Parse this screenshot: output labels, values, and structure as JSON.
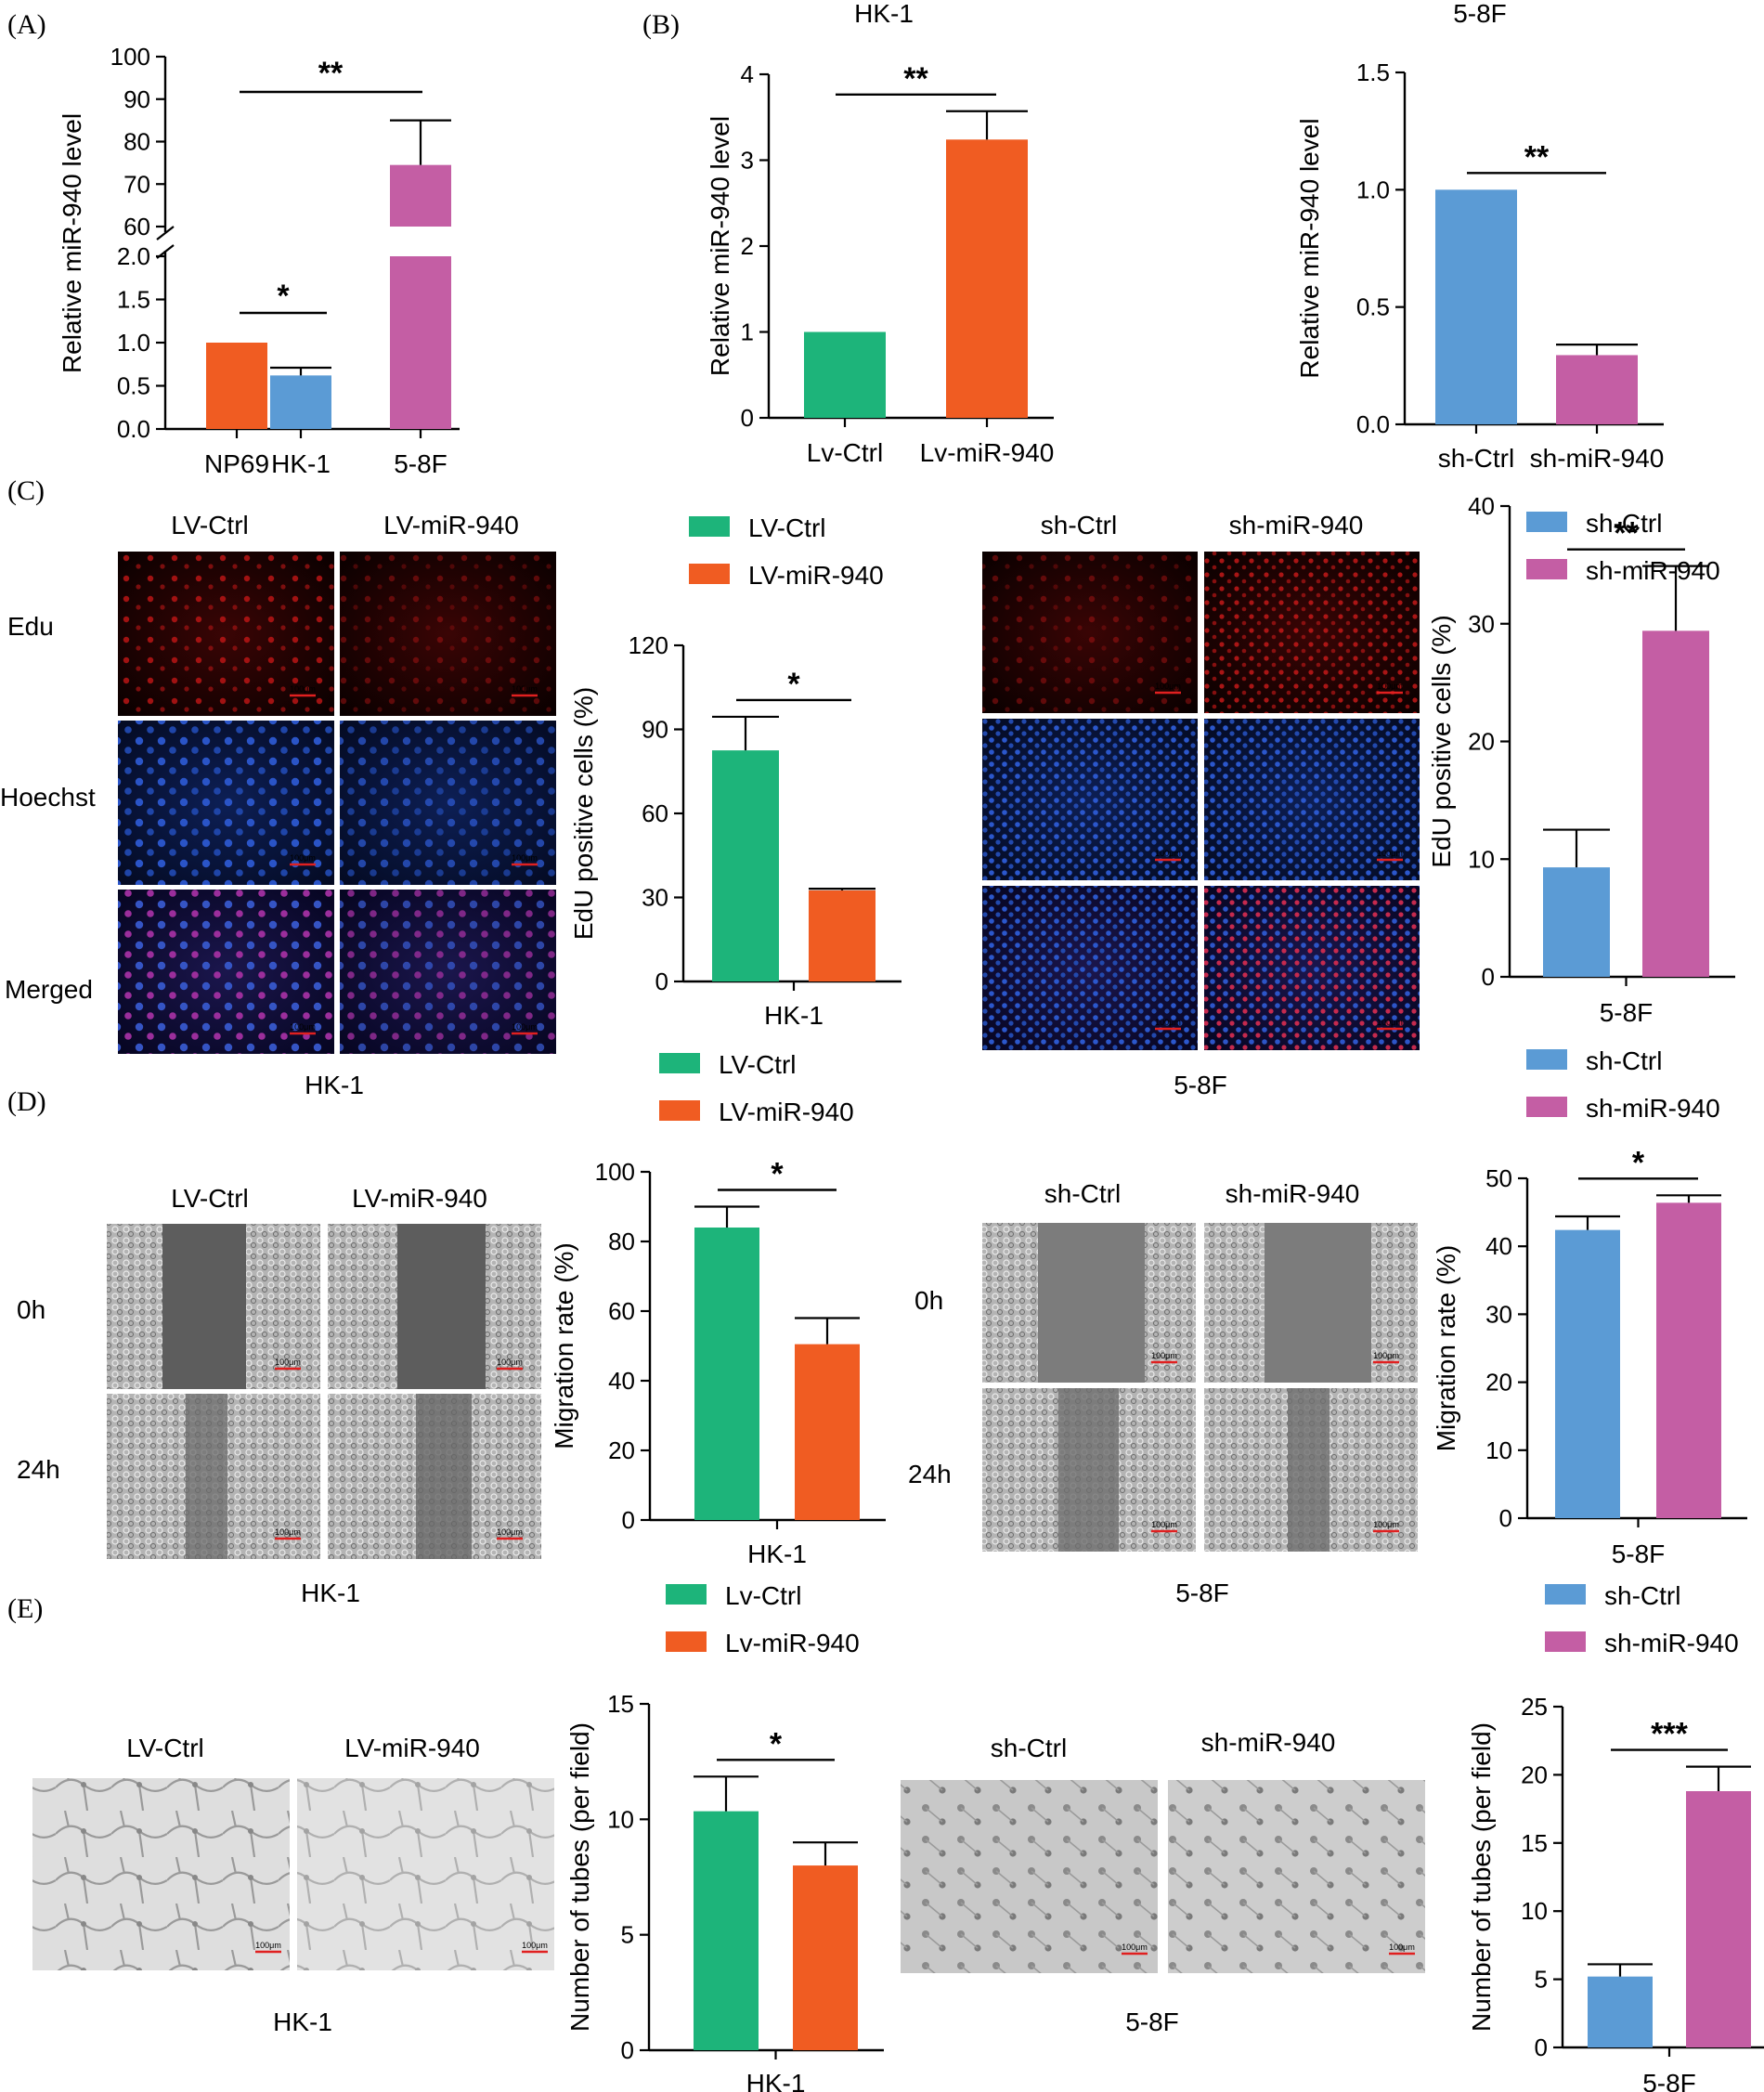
{
  "colors": {
    "green": "#1db47a",
    "orange": "#f05c22",
    "blue": "#5b9bd5",
    "magenta": "#c45ea4",
    "axis": "#000000",
    "edu_red": "#7a0c0c",
    "hoechst_blue": "#132d78",
    "merged": "#3a1a66",
    "scratch_bg": "#a9a9a9",
    "scratch_gap": "#5d5d5d",
    "tube_bg": "#dcdcdc",
    "tube_bg2": "#c7c7c7",
    "scale_red": "#e02020"
  },
  "panels": {
    "a": "(A)",
    "b": "(B)",
    "c": "(C)",
    "d": "(D)",
    "e": "(E)"
  },
  "micro": {
    "scale": "100μm",
    "c": {
      "col_left": [
        "LV-Ctrl",
        "LV-miR-940"
      ],
      "col_right": [
        "sh-Ctrl",
        "sh-miR-940"
      ],
      "rows": [
        "Edu",
        "Hoechst",
        "Merged"
      ],
      "cap_left": "HK-1",
      "cap_right": "5-8F"
    },
    "d": {
      "col_left": [
        "LV-Ctrl",
        "LV-miR-940"
      ],
      "col_right": [
        "sh-Ctrl",
        "sh-miR-940"
      ],
      "rows_left": [
        "0h",
        "24h"
      ],
      "rows_right": [
        "0h",
        "24h"
      ],
      "cap_left": "HK-1",
      "cap_right": "5-8F"
    },
    "e": {
      "col_left": [
        "LV-Ctrl",
        "LV-miR-940"
      ],
      "col_right": [
        "sh-Ctrl",
        "sh-miR-940"
      ],
      "cap_left": "HK-1",
      "cap_right": "5-8F"
    }
  },
  "legends": {
    "c_mid": [
      "LV-Ctrl",
      "LV-miR-940"
    ],
    "c_right": [
      "sh-Ctrl",
      "sh-miR-940"
    ],
    "d_mid": [
      "LV-Ctrl",
      "LV-miR-940"
    ],
    "d_right": [
      "sh-Ctrl",
      "sh-miR-940"
    ],
    "e_mid": [
      "Lv-Ctrl",
      "Lv-miR-940"
    ],
    "e_right": [
      "sh-Ctrl",
      "sh-miR-940"
    ]
  },
  "chart_data": [
    {
      "id": "A",
      "type": "bar",
      "broken_axis": true,
      "title": "",
      "categories": [
        "NP69",
        "HK-1",
        "5-8F"
      ],
      "values": [
        1.0,
        0.62,
        74.5
      ],
      "errors": [
        0,
        0.09,
        10.5
      ],
      "colors": [
        "#f05c22",
        "#5b9bd5",
        "#c45ea4"
      ],
      "ylabel": "Relative miR-940 level",
      "lower_range": [
        0,
        2
      ],
      "lower_ticks": [
        "0.0",
        "0.5",
        "1.0",
        "1.5",
        "2.0"
      ],
      "lower_tick_values": [
        0,
        0.5,
        1.0,
        1.5,
        2.0
      ],
      "upper_range": [
        60,
        100
      ],
      "upper_ticks": [
        "60",
        "70",
        "80",
        "90",
        "100"
      ],
      "upper_tick_values": [
        60,
        70,
        80,
        90,
        100
      ],
      "significance": [
        {
          "from": 0,
          "to": 1,
          "label": "*"
        },
        {
          "from": 0,
          "to": 2,
          "label": "**"
        }
      ]
    },
    {
      "id": "B1",
      "type": "bar",
      "title": "HK-1",
      "categories": [
        "Lv-Ctrl",
        "Lv-miR-940"
      ],
      "values": [
        1.0,
        3.24
      ],
      "errors": [
        0,
        0.33
      ],
      "colors": [
        "#1db47a",
        "#f05c22"
      ],
      "ylabel": "Relative miR-940 level",
      "xlabel": "",
      "ylim": [
        0,
        4
      ],
      "yticks": [
        "0",
        "1",
        "2",
        "3",
        "4"
      ],
      "ytick_values": [
        0,
        1,
        2,
        3,
        4
      ],
      "significance": [
        {
          "from": 0,
          "to": 1,
          "label": "**"
        }
      ]
    },
    {
      "id": "B2",
      "type": "bar",
      "title": "5-8F",
      "categories": [
        "sh-Ctrl",
        "sh-miR-940"
      ],
      "values": [
        1.0,
        0.295
      ],
      "errors": [
        0,
        0.045
      ],
      "colors": [
        "#5b9bd5",
        "#c45ea4"
      ],
      "ylabel": "Relative miR-940 level",
      "xlabel": "",
      "ylim": [
        0,
        1.5
      ],
      "yticks": [
        "0.0",
        "0.5",
        "1.0",
        "1.5"
      ],
      "ytick_values": [
        0,
        0.5,
        1.0,
        1.5
      ],
      "significance": [
        {
          "from": 0,
          "to": 1,
          "label": "**"
        }
      ]
    },
    {
      "id": "C1",
      "type": "bar",
      "title": "",
      "categories": [
        "LV-Ctrl",
        "LV-miR-940"
      ],
      "values": [
        82.5,
        32.5
      ],
      "errors": [
        12,
        0.6
      ],
      "colors": [
        "#1db47a",
        "#f05c22"
      ],
      "ylabel": "EdU positive cells (%)",
      "xlabel": "HK-1",
      "ylim": [
        0,
        120
      ],
      "yticks": [
        "0",
        "30",
        "60",
        "90",
        "120"
      ],
      "ytick_values": [
        0,
        30,
        60,
        90,
        120
      ],
      "significance": [
        {
          "from": 0,
          "to": 1,
          "label": "*"
        }
      ]
    },
    {
      "id": "C2",
      "type": "bar",
      "title": "",
      "categories": [
        "sh-Ctrl",
        "sh-miR-940"
      ],
      "values": [
        9.3,
        29.4
      ],
      "errors": [
        3.2,
        5.5
      ],
      "colors": [
        "#5b9bd5",
        "#c45ea4"
      ],
      "ylabel": "EdU positive cells (%)",
      "xlabel": "5-8F",
      "ylim": [
        0,
        40
      ],
      "yticks": [
        "0",
        "10",
        "20",
        "30",
        "40"
      ],
      "ytick_values": [
        0,
        10,
        20,
        30,
        40
      ],
      "significance": [
        {
          "from": 0,
          "to": 1,
          "label": "**"
        }
      ]
    },
    {
      "id": "D1",
      "type": "bar",
      "title": "",
      "categories": [
        "LV-Ctrl",
        "LV-miR-940"
      ],
      "values": [
        84,
        50.5
      ],
      "errors": [
        6,
        7.5
      ],
      "colors": [
        "#1db47a",
        "#f05c22"
      ],
      "ylabel": "Migration rate (%)",
      "xlabel": "HK-1",
      "ylim": [
        0,
        100
      ],
      "yticks": [
        "0",
        "20",
        "40",
        "60",
        "80",
        "100"
      ],
      "ytick_values": [
        0,
        20,
        40,
        60,
        80,
        100
      ],
      "significance": [
        {
          "from": 0,
          "to": 1,
          "label": "*"
        }
      ]
    },
    {
      "id": "D2",
      "type": "bar",
      "title": "",
      "categories": [
        "sh-Ctrl",
        "sh-miR-940"
      ],
      "values": [
        42.4,
        46.4
      ],
      "errors": [
        2.0,
        1.1
      ],
      "colors": [
        "#5b9bd5",
        "#c45ea4"
      ],
      "ylabel": "Migration rate (%)",
      "xlabel": "5-8F",
      "ylim": [
        0,
        50
      ],
      "yticks": [
        "0",
        "10",
        "20",
        "30",
        "40",
        "50"
      ],
      "ytick_values": [
        0,
        10,
        20,
        30,
        40,
        50
      ],
      "significance": [
        {
          "from": 0,
          "to": 1,
          "label": "*"
        }
      ]
    },
    {
      "id": "E1",
      "type": "bar",
      "title": "",
      "categories": [
        "Lv-Ctrl",
        "Lv-miR-940"
      ],
      "values": [
        10.35,
        8.0
      ],
      "errors": [
        1.5,
        1.0
      ],
      "colors": [
        "#1db47a",
        "#f05c22"
      ],
      "ylabel": "Number of tubes (per field)",
      "xlabel": "HK-1",
      "ylim": [
        0,
        15
      ],
      "yticks": [
        "0",
        "5",
        "10",
        "15"
      ],
      "ytick_values": [
        0,
        5,
        10,
        15
      ],
      "significance": [
        {
          "from": 0,
          "to": 1,
          "label": "*"
        }
      ]
    },
    {
      "id": "E2",
      "type": "bar",
      "title": "",
      "categories": [
        "sh-Ctrl",
        "sh-miR-940"
      ],
      "values": [
        5.2,
        18.8
      ],
      "errors": [
        0.9,
        1.8
      ],
      "colors": [
        "#5b9bd5",
        "#c45ea4"
      ],
      "ylabel": "Number of tubes (per field)",
      "xlabel": "5-8F",
      "ylim": [
        0,
        25
      ],
      "yticks": [
        "0",
        "5",
        "10",
        "15",
        "20",
        "25"
      ],
      "ytick_values": [
        0,
        5,
        10,
        15,
        20,
        25
      ],
      "significance": [
        {
          "from": 0,
          "to": 1,
          "label": "***"
        }
      ]
    }
  ]
}
